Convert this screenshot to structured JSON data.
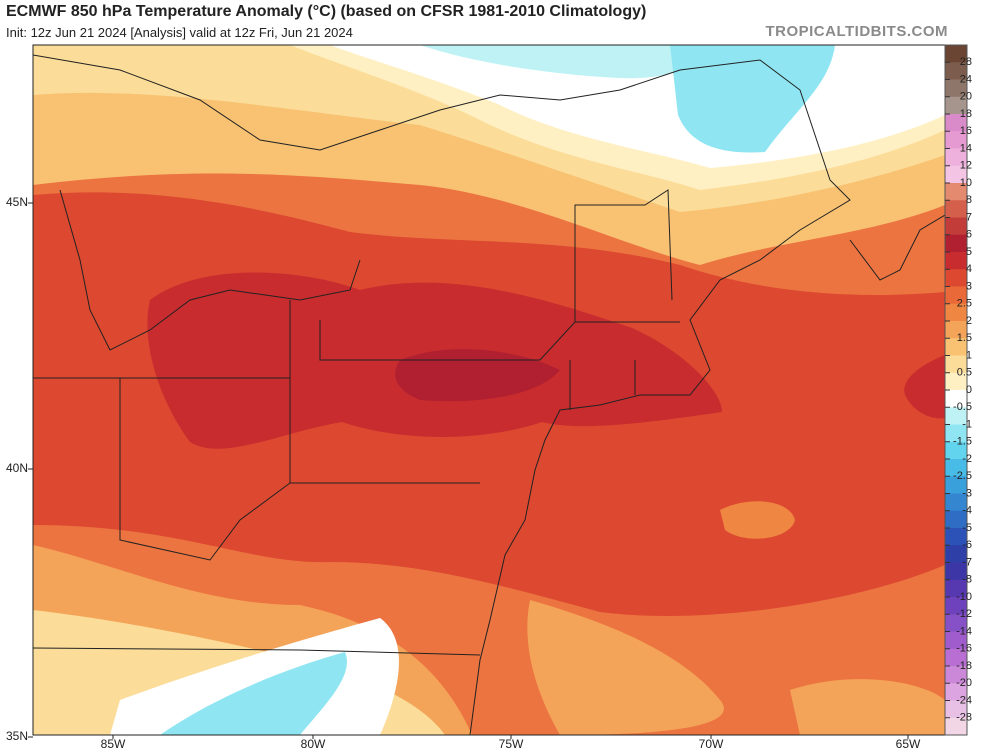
{
  "header": {
    "title": "ECMWF 850 hPa Temperature Anomaly (°C) (based on CFSR 1981-2010 Climatology)",
    "subtitle": "Init: 12z Jun 21 2024   [Analysis]   valid at 12z Fri, Jun 21 2024",
    "site": "TROPICALTIDBITS.COM"
  },
  "map": {
    "lat_labels": [
      "45N",
      "40N",
      "35N"
    ],
    "lon_labels": [
      "85W",
      "80W",
      "75W",
      "70W",
      "65W"
    ]
  },
  "colorbar": {
    "labels": [
      28,
      24,
      20,
      18,
      16,
      14,
      12,
      10,
      8,
      7,
      6,
      5,
      4,
      3,
      2.5,
      2,
      1.5,
      1,
      0.5,
      0,
      -0.5,
      -1,
      -1.5,
      -2,
      -2.5,
      -3,
      -4,
      -5,
      -6,
      -7,
      -8,
      -10,
      -12,
      -14,
      -16,
      -18,
      -20,
      -24,
      -28
    ],
    "colors": [
      "#6b4534",
      "#7c5c4c",
      "#8e776a",
      "#a6958c",
      "#d98ac8",
      "#e59bd2",
      "#eeb0dc",
      "#f3c4e4",
      "#e48a6e",
      "#d4604c",
      "#c23c3a",
      "#b02030",
      "#c82c2e",
      "#dc4830",
      "#e96a38",
      "#ef8642",
      "#f4a458",
      "#f8c272",
      "#fbdc98",
      "#fff0c4",
      "#ffffff",
      "#bff2f4",
      "#8fe6f2",
      "#62d4ee",
      "#48bbe6",
      "#3aa0dc",
      "#3486d0",
      "#2f6cc4",
      "#2c52b8",
      "#2e40a8",
      "#3c36a6",
      "#5638b0",
      "#6e42bc",
      "#8650c6",
      "#a05ccc",
      "#b86ed2",
      "#cc88d8",
      "#dca4e0",
      "#e8c0e6",
      "#f2d6e6"
    ]
  }
}
